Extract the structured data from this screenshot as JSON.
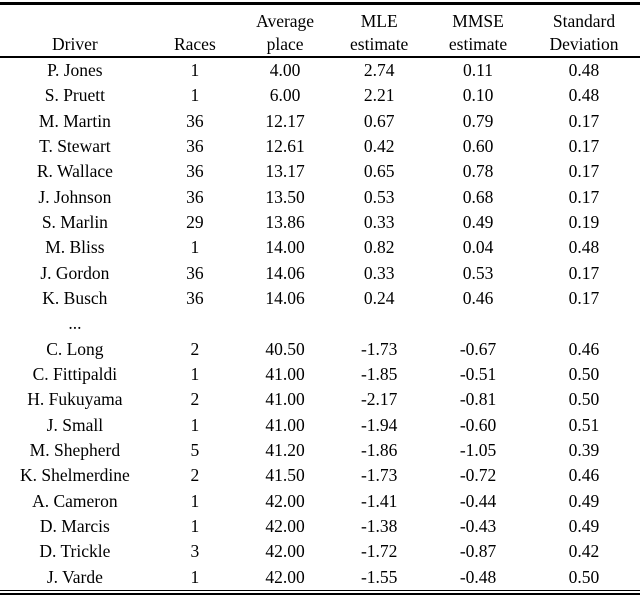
{
  "document": {
    "background_color": "#ffffff",
    "text_color": "#000000"
  },
  "table": {
    "columns": [
      {
        "id": "driver",
        "header_line1": "",
        "header_line2": "Driver"
      },
      {
        "id": "races",
        "header_line1": "",
        "header_line2": "Races"
      },
      {
        "id": "average_place",
        "header_line1": "Average",
        "header_line2": "place"
      },
      {
        "id": "mle",
        "header_line1": "MLE",
        "header_line2": "estimate"
      },
      {
        "id": "mmse",
        "header_line1": "MMSE",
        "header_line2": "estimate"
      },
      {
        "id": "sd",
        "header_line1": "Standard",
        "header_line2": "Deviation"
      }
    ],
    "rows": [
      {
        "driver": "P. Jones",
        "races": "1",
        "average_place": "4.00",
        "mle": "2.74",
        "mmse": "0.11",
        "sd": "0.48"
      },
      {
        "driver": "S. Pruett",
        "races": "1",
        "average_place": "6.00",
        "mle": "2.21",
        "mmse": "0.10",
        "sd": "0.48"
      },
      {
        "driver": "M. Martin",
        "races": "36",
        "average_place": "12.17",
        "mle": "0.67",
        "mmse": "0.79",
        "sd": "0.17"
      },
      {
        "driver": "T. Stewart",
        "races": "36",
        "average_place": "12.61",
        "mle": "0.42",
        "mmse": "0.60",
        "sd": "0.17"
      },
      {
        "driver": "R. Wallace",
        "races": "36",
        "average_place": "13.17",
        "mle": "0.65",
        "mmse": "0.78",
        "sd": "0.17"
      },
      {
        "driver": "J. Johnson",
        "races": "36",
        "average_place": "13.50",
        "mle": "0.53",
        "mmse": "0.68",
        "sd": "0.17"
      },
      {
        "driver": "S. Marlin",
        "races": "29",
        "average_place": "13.86",
        "mle": "0.33",
        "mmse": "0.49",
        "sd": "0.19"
      },
      {
        "driver": "M. Bliss",
        "races": "1",
        "average_place": "14.00",
        "mle": "0.82",
        "mmse": "0.04",
        "sd": "0.48"
      },
      {
        "driver": "J. Gordon",
        "races": "36",
        "average_place": "14.06",
        "mle": "0.33",
        "mmse": "0.53",
        "sd": "0.17"
      },
      {
        "driver": "K. Busch",
        "races": "36",
        "average_place": "14.06",
        "mle": "0.24",
        "mmse": "0.46",
        "sd": "0.17"
      },
      {
        "driver": "...",
        "races": "",
        "average_place": "",
        "mle": "",
        "mmse": "",
        "sd": ""
      },
      {
        "driver": "C. Long",
        "races": "2",
        "average_place": "40.50",
        "mle": "-1.73",
        "mmse": "-0.67",
        "sd": "0.46"
      },
      {
        "driver": "C. Fittipaldi",
        "races": "1",
        "average_place": "41.00",
        "mle": "-1.85",
        "mmse": "-0.51",
        "sd": "0.50"
      },
      {
        "driver": "H. Fukuyama",
        "races": "2",
        "average_place": "41.00",
        "mle": "-2.17",
        "mmse": "-0.81",
        "sd": "0.50"
      },
      {
        "driver": "J. Small",
        "races": "1",
        "average_place": "41.00",
        "mle": "-1.94",
        "mmse": "-0.60",
        "sd": "0.51"
      },
      {
        "driver": "M. Shepherd",
        "races": "5",
        "average_place": "41.20",
        "mle": "-1.86",
        "mmse": "-1.05",
        "sd": "0.39"
      },
      {
        "driver": "K. Shelmerdine",
        "races": "2",
        "average_place": "41.50",
        "mle": "-1.73",
        "mmse": "-0.72",
        "sd": "0.46"
      },
      {
        "driver": "A. Cameron",
        "races": "1",
        "average_place": "42.00",
        "mle": "-1.41",
        "mmse": "-0.44",
        "sd": "0.49"
      },
      {
        "driver": "D. Marcis",
        "races": "1",
        "average_place": "42.00",
        "mle": "-1.38",
        "mmse": "-0.43",
        "sd": "0.49"
      },
      {
        "driver": "D. Trickle",
        "races": "3",
        "average_place": "42.00",
        "mle": "-1.72",
        "mmse": "-0.87",
        "sd": "0.42"
      },
      {
        "driver": "J. Varde",
        "races": "1",
        "average_place": "42.00",
        "mle": "-1.55",
        "mmse": "-0.48",
        "sd": "0.50"
      }
    ]
  }
}
